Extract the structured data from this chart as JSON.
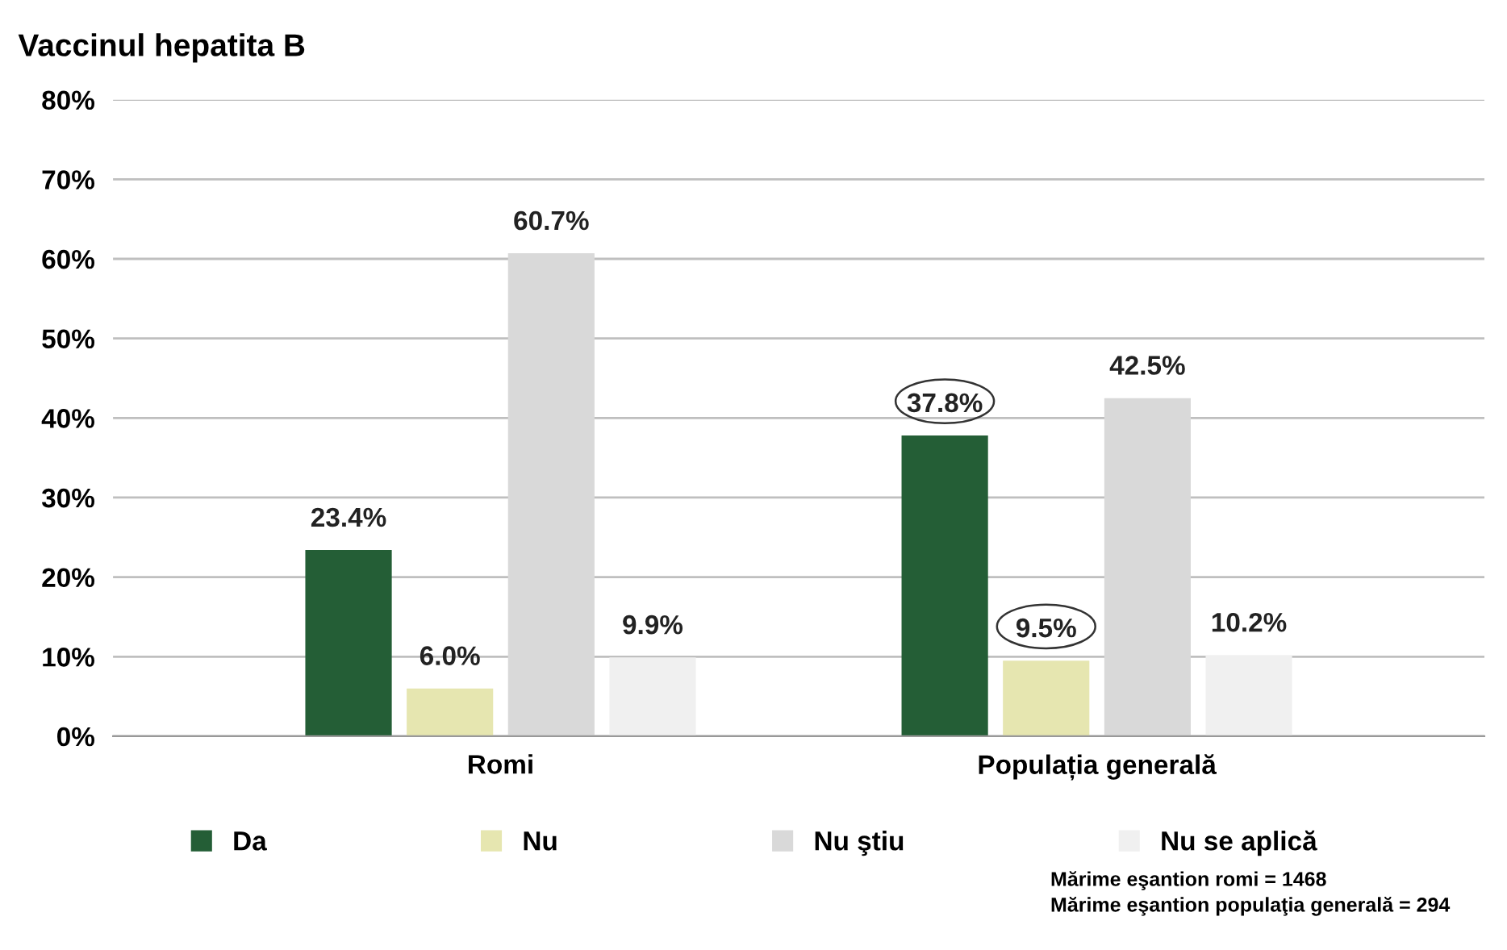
{
  "chart_data": {
    "type": "bar",
    "title": "Vaccinul hepatita B",
    "categories": [
      "Romi",
      "Populația generală"
    ],
    "series": [
      {
        "name": "Da",
        "color": "#245e36",
        "values": [
          23.4,
          37.8
        ],
        "value_labels": [
          "23.4%",
          "37.8%"
        ]
      },
      {
        "name": "Nu",
        "color": "#e6e6b0",
        "values": [
          6.0,
          9.5
        ],
        "value_labels": [
          "6.0%",
          "9.5%"
        ]
      },
      {
        "name": "Nu ştiu",
        "color": "#d9d9d9",
        "values": [
          60.7,
          42.5
        ],
        "value_labels": [
          "60.7%",
          "42.5%"
        ]
      },
      {
        "name": "Nu se aplică",
        "color": "#f0f0f0",
        "values": [
          9.9,
          10.2
        ],
        "value_labels": [
          "9.9%",
          "10.2%"
        ]
      }
    ],
    "ylim": [
      0,
      80
    ],
    "yticks": [
      {
        "value": 0,
        "label": "0%"
      },
      {
        "value": 10,
        "label": "10%"
      },
      {
        "value": 20,
        "label": "20%"
      },
      {
        "value": 30,
        "label": "30%"
      },
      {
        "value": 40,
        "label": "40%"
      },
      {
        "value": 50,
        "label": "50%"
      },
      {
        "value": 60,
        "label": "60%"
      },
      {
        "value": 70,
        "label": "70%"
      },
      {
        "value": 80,
        "label": "80%"
      }
    ],
    "grid": "y",
    "legend": "bottom",
    "annotations": [
      "Mărime eşantion romi = 1468",
      "Mărime eşantion populaţia generală = 294"
    ]
  }
}
